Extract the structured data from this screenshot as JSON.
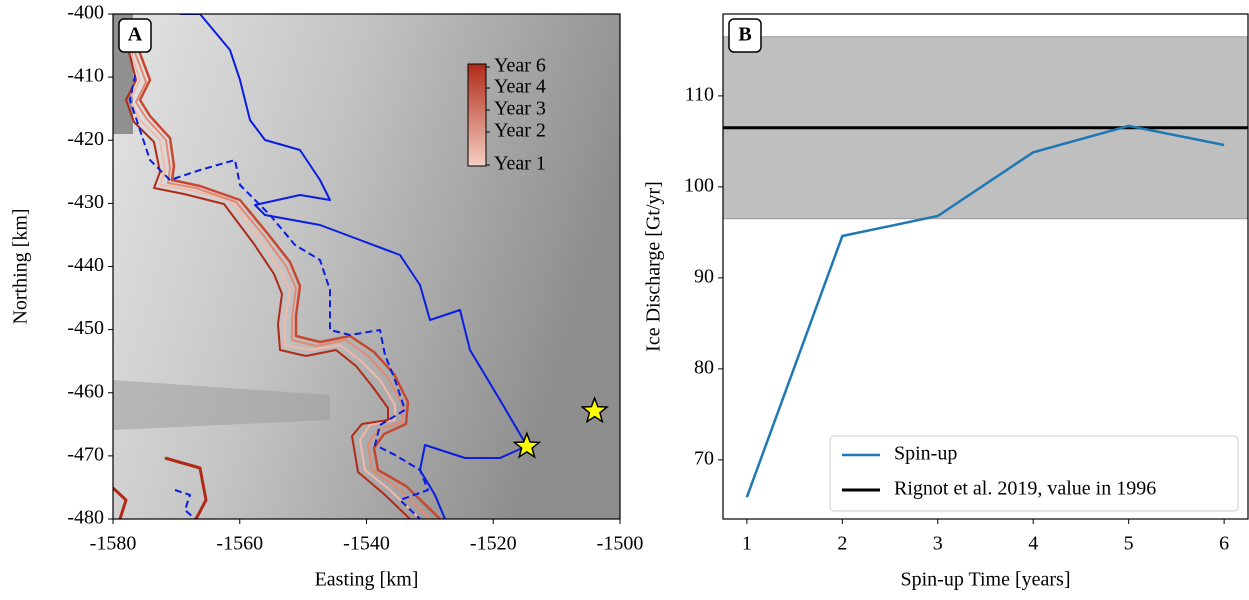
{
  "chart_data": [
    {
      "type": "map",
      "panel_label": "A",
      "xlabel": "Easting [km]",
      "ylabel": "Northing [km]",
      "xlim": [
        -1580,
        -1500
      ],
      "ylim": [
        -480,
        -400
      ],
      "xticks": [
        -1580,
        -1560,
        -1540,
        -1520,
        -1500
      ],
      "yticks": [
        -400,
        -410,
        -420,
        -430,
        -440,
        -450,
        -460,
        -470,
        -480
      ],
      "colorbar": {
        "labels": [
          "Year 6",
          "Year 4",
          "Year 3",
          "Year 2",
          "Year 1"
        ]
      },
      "points": {
        "x": [
          -1514.7,
          -1504.0
        ],
        "y": [
          -468.5,
          -462.9
        ],
        "color": "#ffff00"
      }
    },
    {
      "type": "line",
      "panel_label": "B",
      "xlabel": "Spin-up Time [years]",
      "ylabel": "Ice Discharge [Gt/yr]",
      "x": [
        1,
        2,
        3,
        4,
        5,
        6
      ],
      "series": [
        {
          "name": "Spin-up",
          "color": "#1f77b4",
          "values": [
            65.9,
            94.6,
            96.8,
            103.8,
            106.7,
            104.6
          ]
        }
      ],
      "hline": {
        "name": "Rignot et al. 2019, value in 1996",
        "color": "#000000",
        "value": 106.5
      },
      "span": {
        "range": [
          96.5,
          116.5
        ],
        "color": "#bfbfbf"
      },
      "xlim": [
        0.75,
        6.25
      ],
      "ylim": [
        63.5,
        119
      ],
      "xticks": [
        1,
        2,
        3,
        4,
        5,
        6
      ],
      "yticks": [
        70,
        80,
        90,
        100,
        110
      ],
      "legend": "lower right"
    }
  ]
}
